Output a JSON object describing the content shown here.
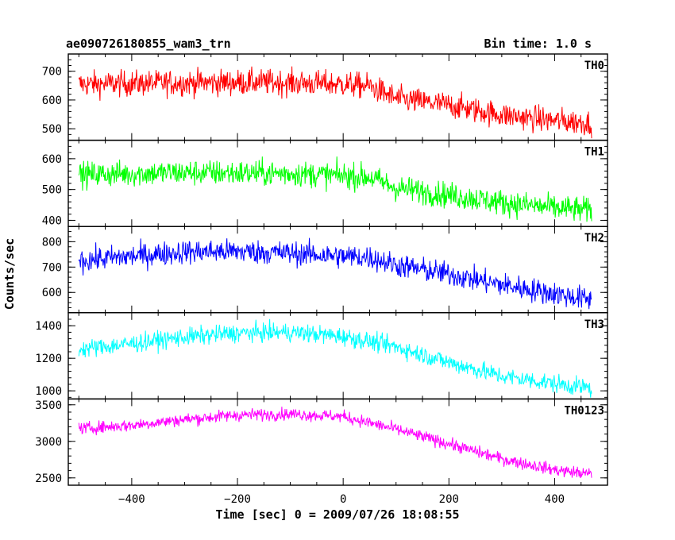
{
  "chart_data": {
    "type": "line",
    "title": "ae090726180855_wam3_trn",
    "bin_time_label": "Bin time: 1.0 s",
    "xlabel": "Time [sec] 0 = 2009/07/26 18:08:55",
    "ylabel": "Counts/sec",
    "xlim": [
      -520,
      500
    ],
    "x_ticks": [
      -400,
      -200,
      0,
      200,
      400
    ],
    "x_tick_labels": [
      "−400",
      "−200",
      "0",
      "200",
      "400"
    ],
    "x_range_data": [
      -500,
      470
    ],
    "grid": false,
    "panels": [
      {
        "name": "TH0",
        "color": "#ff0000",
        "ylim": [
          460,
          760
        ],
        "y_ticks": [
          500,
          600,
          700
        ],
        "y_tick_labels": [
          "500",
          "600",
          "700"
        ],
        "trend": [
          [
            -500,
            655
          ],
          [
            -300,
            660
          ],
          [
            -150,
            662
          ],
          [
            0,
            655
          ],
          [
            50,
            648
          ],
          [
            100,
            605
          ],
          [
            200,
            582
          ],
          [
            300,
            548
          ],
          [
            400,
            528
          ],
          [
            470,
            520
          ]
        ],
        "noise": 32
      },
      {
        "name": "TH1",
        "color": "#00ff00",
        "ylim": [
          380,
          660
        ],
        "y_ticks": [
          400,
          500,
          600
        ],
        "y_tick_labels": [
          "400",
          "500",
          "600"
        ],
        "trend": [
          [
            -500,
            548
          ],
          [
            -300,
            555
          ],
          [
            -100,
            552
          ],
          [
            0,
            545
          ],
          [
            50,
            540
          ],
          [
            100,
            505
          ],
          [
            200,
            482
          ],
          [
            300,
            458
          ],
          [
            400,
            440
          ],
          [
            470,
            432
          ]
        ],
        "noise": 30
      },
      {
        "name": "TH2",
        "color": "#0000ff",
        "ylim": [
          520,
          860
        ],
        "y_ticks": [
          600,
          700,
          800
        ],
        "y_tick_labels": [
          "600",
          "700",
          "800"
        ],
        "trend": [
          [
            -500,
            725
          ],
          [
            -300,
            760
          ],
          [
            -200,
            762
          ],
          [
            -100,
            755
          ],
          [
            0,
            742
          ],
          [
            50,
            738
          ],
          [
            100,
            708
          ],
          [
            200,
            672
          ],
          [
            300,
            630
          ],
          [
            400,
            595
          ],
          [
            470,
            570
          ]
        ],
        "noise": 34
      },
      {
        "name": "TH3",
        "color": "#00ffff",
        "ylim": [
          950,
          1480
        ],
        "y_ticks": [
          1000,
          1200,
          1400
        ],
        "y_tick_labels": [
          "1000",
          "1200",
          "1400"
        ],
        "trend": [
          [
            -500,
            1255
          ],
          [
            -400,
            1290
          ],
          [
            -300,
            1330
          ],
          [
            -200,
            1355
          ],
          [
            -100,
            1360
          ],
          [
            0,
            1335
          ],
          [
            100,
            1270
          ],
          [
            200,
            1175
          ],
          [
            300,
            1090
          ],
          [
            400,
            1045
          ],
          [
            470,
            1015
          ]
        ],
        "noise": 40
      },
      {
        "name": "TH0123",
        "color": "#ff00ff",
        "ylim": [
          2400,
          3580
        ],
        "y_ticks": [
          2500,
          3000,
          3500
        ],
        "y_tick_labels": [
          "2500",
          "3000",
          "3500"
        ],
        "trend": [
          [
            -500,
            3175
          ],
          [
            -400,
            3220
          ],
          [
            -300,
            3300
          ],
          [
            -200,
            3360
          ],
          [
            -100,
            3375
          ],
          [
            0,
            3340
          ],
          [
            100,
            3165
          ],
          [
            200,
            2965
          ],
          [
            300,
            2760
          ],
          [
            400,
            2610
          ],
          [
            470,
            2550
          ]
        ],
        "noise": 60
      }
    ]
  }
}
